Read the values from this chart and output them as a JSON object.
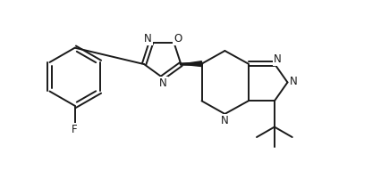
{
  "bg_color": "#ffffff",
  "line_color": "#1a1a1a",
  "line_width": 1.4,
  "font_size": 8.5,
  "figsize": [
    4.26,
    2.1
  ],
  "dpi": 100,
  "xlim": [
    0.0,
    10.0
  ],
  "ylim": [
    0.0,
    5.0
  ]
}
